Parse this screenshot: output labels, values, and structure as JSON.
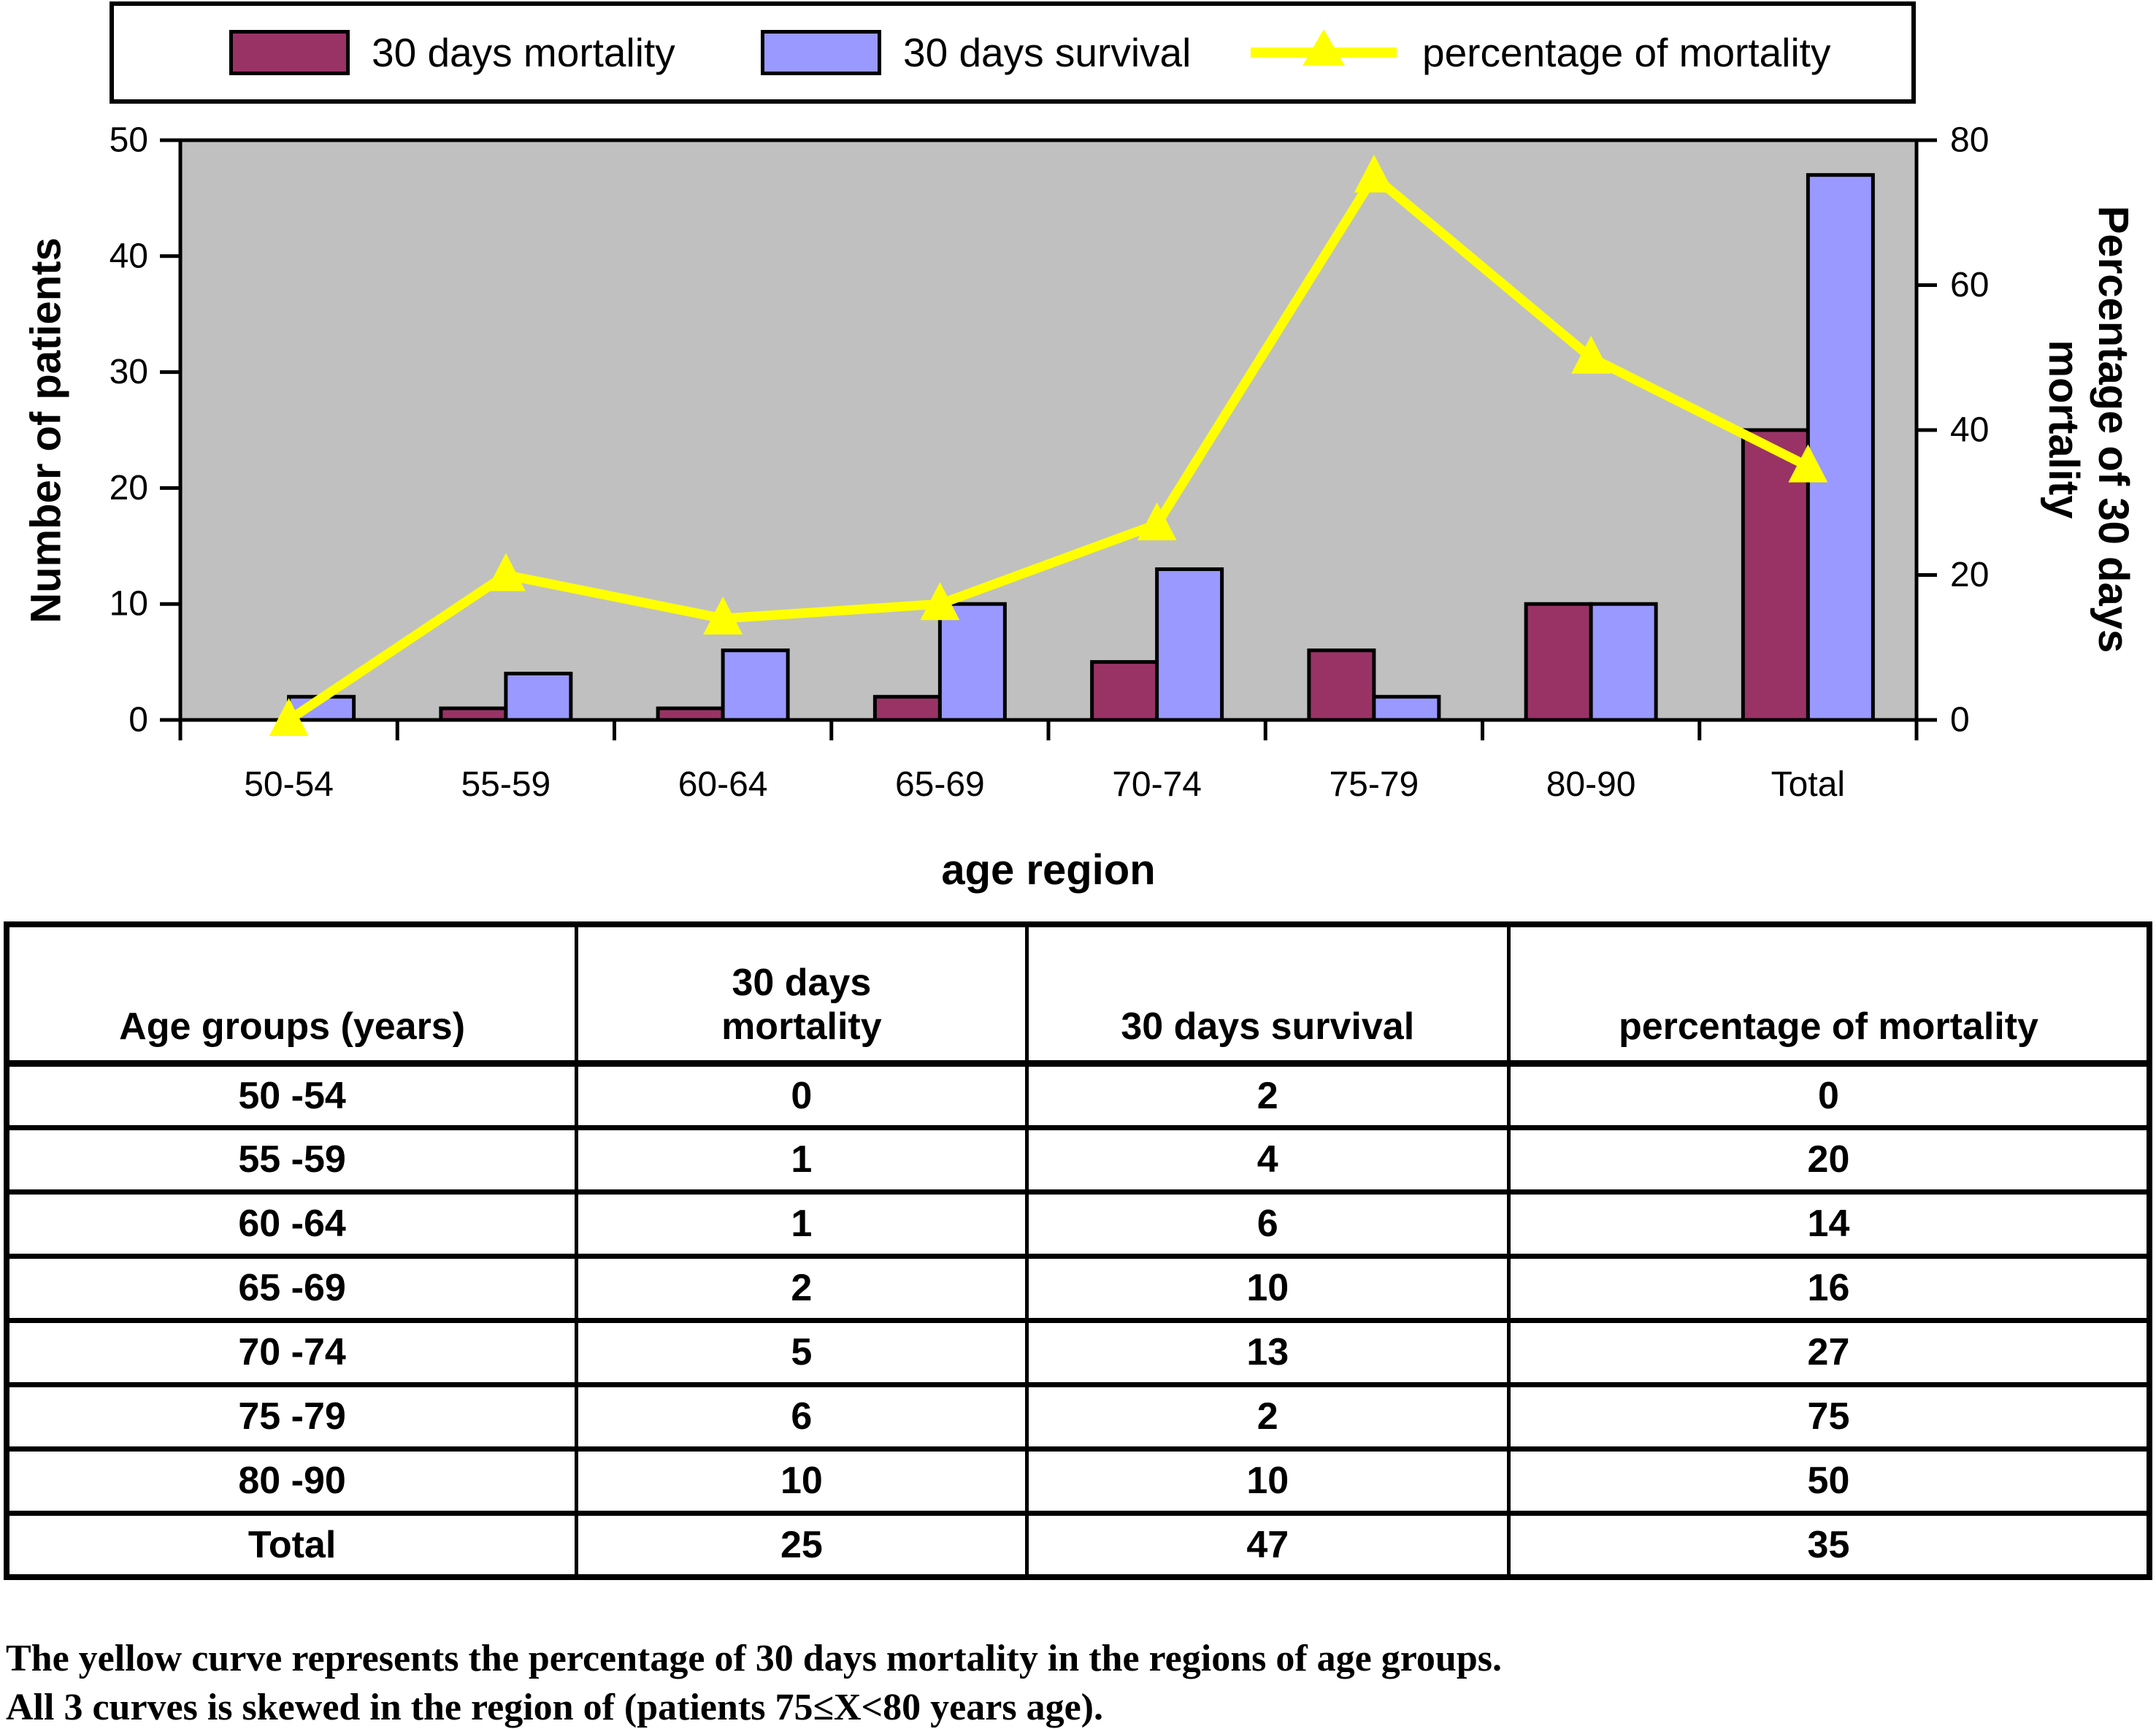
{
  "legend": {
    "items": [
      {
        "label": "30 days mortality",
        "color": "#993366",
        "type": "box"
      },
      {
        "label": "30 days survival",
        "color": "#9999ff",
        "type": "box"
      },
      {
        "label": "percentage of mortality",
        "color": "#ffff00",
        "type": "line-triangle"
      }
    ]
  },
  "chart_data": {
    "type": "bar+line combo",
    "categories": [
      "50-54",
      "55-59",
      "60-64",
      "65-69",
      "70-74",
      "75-79",
      "80-90",
      "Total"
    ],
    "series": [
      {
        "name": "30 days mortality",
        "type": "bar",
        "axis": "left",
        "color": "#993366",
        "values": [
          0,
          1,
          1,
          2,
          5,
          6,
          10,
          25
        ]
      },
      {
        "name": "30 days survival",
        "type": "bar",
        "axis": "left",
        "color": "#9999ff",
        "values": [
          2,
          4,
          6,
          10,
          13,
          2,
          10,
          47
        ]
      },
      {
        "name": "percentage of mortality",
        "type": "line",
        "axis": "right",
        "color": "#ffff00",
        "marker": "triangle-up",
        "values": [
          0,
          20,
          14,
          16,
          27,
          75,
          50,
          35
        ]
      }
    ],
    "left_axis": {
      "title": "Number of patients",
      "min": 0,
      "max": 50,
      "ticks": [
        0,
        10,
        20,
        30,
        40,
        50
      ]
    },
    "right_axis": {
      "title": "Percentage of 30 days\nmortality",
      "min": 0,
      "max": 80,
      "ticks": [
        0,
        20,
        40,
        60,
        80
      ]
    },
    "x_axis": {
      "title": "age region"
    },
    "plot_background": "#c0c0c0",
    "grid": false,
    "legend_position": "top"
  },
  "table": {
    "headers": [
      "Age groups (years)",
      "30 days\nmortality",
      "30 days survival",
      "percentage of mortality"
    ],
    "rows": [
      [
        "50 -54",
        "0",
        "2",
        "0"
      ],
      [
        "55 -59",
        "1",
        "4",
        "20"
      ],
      [
        "60 -64",
        "1",
        "6",
        "14"
      ],
      [
        "65 -69",
        "2",
        "10",
        "16"
      ],
      [
        "70 -74",
        "5",
        "13",
        "27"
      ],
      [
        "75 -79",
        "6",
        "2",
        "75"
      ],
      [
        "80 -90",
        "10",
        "10",
        "50"
      ],
      [
        "Total",
        "25",
        "47",
        "35"
      ]
    ]
  },
  "footnotes": [
    "The yellow curve represents the percentage of 30 days mortality in the regions of age groups.",
    "All 3 curves is skewed in the region of (patients 75≤X<80 years age)."
  ]
}
